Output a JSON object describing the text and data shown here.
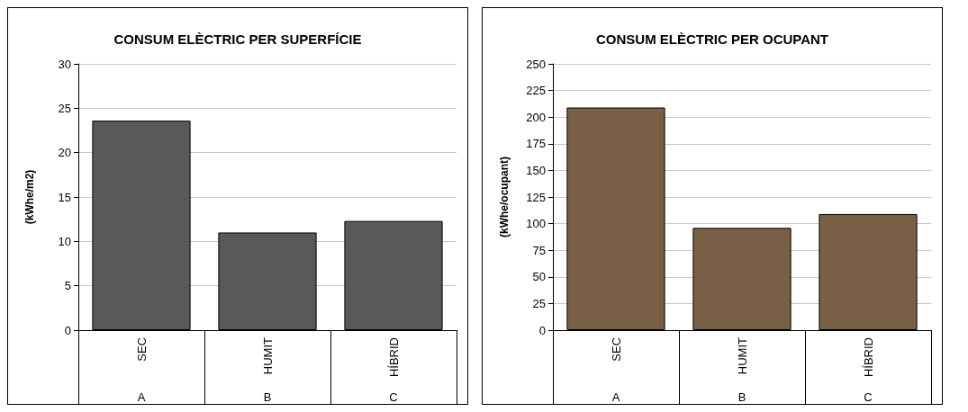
{
  "chart_data": [
    {
      "type": "bar",
      "title": "CONSUM ELÈCTRIC PER SUPERFÍCIE",
      "ylabel": "(kWhe/m2)",
      "categories": [
        "SEC",
        "HUMIT",
        "HÍBRID"
      ],
      "values": [
        23.6,
        11.0,
        12.3
      ],
      "color": "#595959",
      "ylim": [
        0,
        30
      ],
      "yticks": [
        0,
        5,
        10,
        15,
        20,
        25,
        30
      ],
      "grid": "y",
      "annotations": [
        "A",
        "B",
        "C"
      ]
    },
    {
      "type": "bar",
      "title": "CONSUM ELÈCTRIC PER OCUPANT",
      "ylabel": "(kWhe/ocupant)",
      "categories": [
        "SEC",
        "HUMIT",
        "HÍBRID"
      ],
      "values": [
        209,
        96,
        109
      ],
      "color": "#7a5f47",
      "ylim": [
        0,
        250
      ],
      "yticks": [
        0,
        25,
        50,
        75,
        100,
        125,
        150,
        175,
        200,
        225,
        250
      ],
      "grid": "y",
      "annotations": [
        "A",
        "B",
        "C"
      ]
    }
  ]
}
